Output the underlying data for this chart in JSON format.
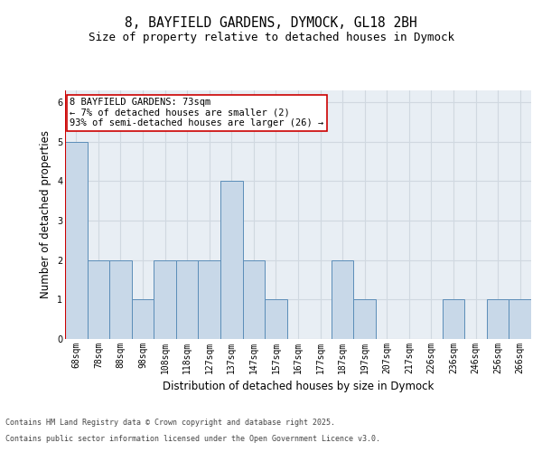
{
  "title_line1": "8, BAYFIELD GARDENS, DYMOCK, GL18 2BH",
  "title_line2": "Size of property relative to detached houses in Dymock",
  "xlabel": "Distribution of detached houses by size in Dymock",
  "ylabel": "Number of detached properties",
  "categories": [
    "68sqm",
    "78sqm",
    "88sqm",
    "98sqm",
    "108sqm",
    "118sqm",
    "127sqm",
    "137sqm",
    "147sqm",
    "157sqm",
    "167sqm",
    "177sqm",
    "187sqm",
    "197sqm",
    "207sqm",
    "217sqm",
    "226sqm",
    "236sqm",
    "246sqm",
    "256sqm",
    "266sqm"
  ],
  "values": [
    5,
    2,
    2,
    1,
    2,
    2,
    2,
    4,
    2,
    1,
    0,
    0,
    2,
    1,
    0,
    0,
    0,
    1,
    0,
    1,
    1
  ],
  "bar_color": "#c8d8e8",
  "bar_edge_color": "#5b8db8",
  "highlight_line_color": "#cc0000",
  "annotation_text": "8 BAYFIELD GARDENS: 73sqm\n← 7% of detached houses are smaller (2)\n93% of semi-detached houses are larger (26) →",
  "annotation_box_facecolor": "#ffffff",
  "annotation_box_edgecolor": "#cc0000",
  "ylim": [
    0,
    6.3
  ],
  "yticks": [
    0,
    1,
    2,
    3,
    4,
    5,
    6
  ],
  "grid_color": "#d0d8e0",
  "background_color": "#e8eef4",
  "footer_line1": "Contains HM Land Registry data © Crown copyright and database right 2025.",
  "footer_line2": "Contains public sector information licensed under the Open Government Licence v3.0.",
  "title_fontsize": 10.5,
  "subtitle_fontsize": 9,
  "axis_label_fontsize": 8.5,
  "tick_fontsize": 7,
  "annotation_fontsize": 7.5,
  "footer_fontsize": 6
}
